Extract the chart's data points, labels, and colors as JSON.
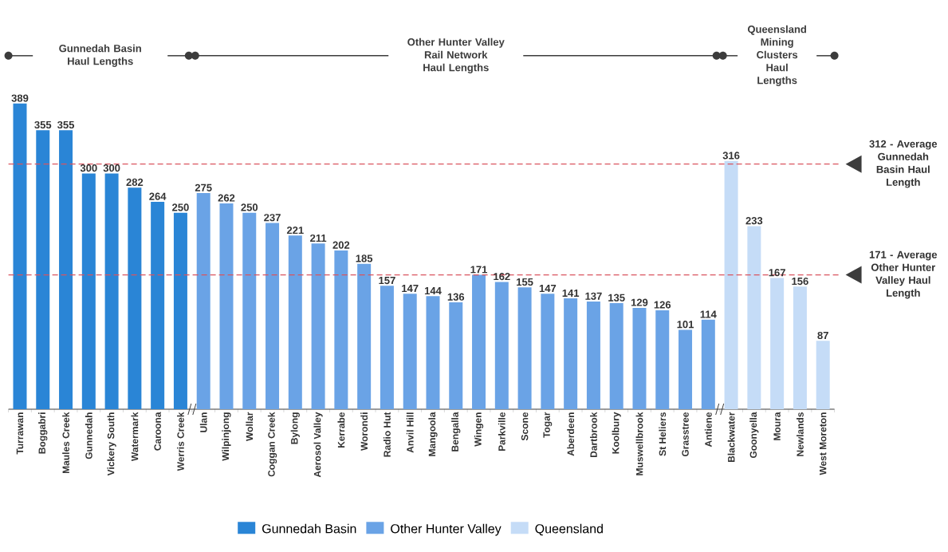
{
  "chart_data": {
    "type": "bar",
    "categories": [
      "Turrawan",
      "Boggabri",
      "Maules Creek",
      "Gunnedah",
      "Vickery South",
      "Watermark",
      "Caroona",
      "Werris Creek",
      "Ulan",
      "Wilpinjong",
      "Wollar",
      "Coggan Creek",
      "Bylong",
      "Aerosol Valley",
      "Kerrabe",
      "Worondi",
      "Radio Hut",
      "Anvil Hill",
      "Mangoola",
      "Bengalla",
      "Wingen",
      "Parkville",
      "Scone",
      "Togar",
      "Aberdeen",
      "Dartbrook",
      "Koolbury",
      "Muswellbrook",
      "St Heliers",
      "Grasstree",
      "Antiene",
      "Blackwater",
      "Goonyella",
      "Moura",
      "Newlands",
      "West Moreton"
    ],
    "series": [
      {
        "name": "Gunnedah Basin",
        "color": "#2a85d6",
        "values": [
          389,
          355,
          355,
          300,
          300,
          282,
          264,
          250,
          null,
          null,
          null,
          null,
          null,
          null,
          null,
          null,
          null,
          null,
          null,
          null,
          null,
          null,
          null,
          null,
          null,
          null,
          null,
          null,
          null,
          null,
          null,
          null,
          null,
          null,
          null,
          null
        ]
      },
      {
        "name": "Other Hunter Valley",
        "color": "#6aa3e6",
        "values": [
          null,
          null,
          null,
          null,
          null,
          null,
          null,
          null,
          275,
          262,
          250,
          237,
          221,
          211,
          202,
          185,
          157,
          147,
          144,
          136,
          171,
          162,
          155,
          147,
          141,
          137,
          135,
          129,
          126,
          101,
          114,
          null,
          null,
          null,
          null,
          null
        ]
      },
      {
        "name": "Queensland",
        "color": "#c5dcf7",
        "values": [
          null,
          null,
          null,
          null,
          null,
          null,
          null,
          null,
          null,
          null,
          null,
          null,
          null,
          null,
          null,
          null,
          null,
          null,
          null,
          null,
          null,
          null,
          null,
          null,
          null,
          null,
          null,
          null,
          null,
          null,
          null,
          316,
          233,
          167,
          156,
          87
        ]
      }
    ],
    "data_labels": true,
    "legend": "bottom",
    "ref_lines": [
      {
        "axis": "y",
        "value": 312,
        "label": "312 - Average Gunnedah Basin Haul Length",
        "color": "#d9545f",
        "line_style": "dashed"
      },
      {
        "axis": "y",
        "value": 171,
        "label": "171 - Average Other Hunter Valley Haul Length",
        "color": "#d9545f",
        "line_style": "dashed"
      }
    ],
    "annotations": [
      "Gunnedah Basin Haul Lengths",
      "Other Hunter Valley Rail Network Haul Lengths",
      "Queensland Mining Clusters Haul Lengths"
    ]
  }
}
